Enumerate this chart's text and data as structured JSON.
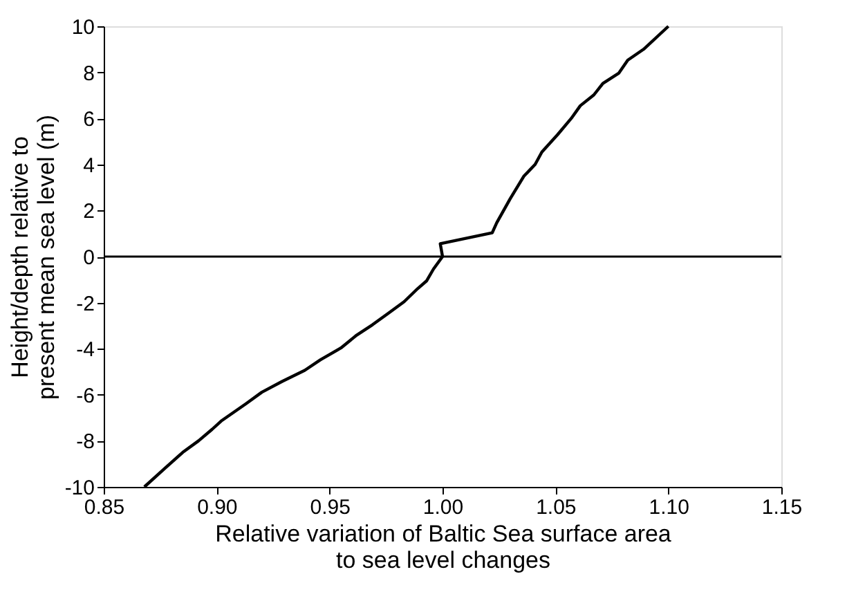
{
  "chart_data": {
    "type": "line",
    "xlabel": "Relative variation of Baltic Sea surface area\nto sea level changes",
    "ylabel": "Height/depth relative to\npresent mean sea level (m)",
    "series": [
      {
        "color": "#000000",
        "x": [
          0.868,
          0.877,
          0.885,
          0.892,
          0.898,
          0.902,
          0.913,
          0.92,
          0.929,
          0.939,
          0.946,
          0.955,
          0.962,
          0.969,
          0.976,
          0.983,
          0.989,
          0.993,
          0.996,
          1.0,
          0.999,
          1.022,
          1.024,
          1.03,
          1.036,
          1.041,
          1.044,
          1.051,
          1.057,
          1.061,
          1.067,
          1.071,
          1.078,
          1.082,
          1.089,
          1.1
        ],
        "values": [
          -10,
          -9.2,
          -8.5,
          -8.0,
          -7.5,
          -7.14,
          -6.39,
          -5.89,
          -5.42,
          -4.94,
          -4.48,
          -3.97,
          -3.41,
          -2.96,
          -2.46,
          -1.96,
          -1.39,
          -1.05,
          -0.54,
          0,
          0.56,
          1.03,
          1.47,
          2.52,
          3.49,
          4.0,
          4.54,
          5.3,
          6.0,
          6.55,
          7.02,
          7.52,
          7.96,
          8.53,
          9.0,
          10
        ]
      }
    ],
    "xlim": [
      0.85,
      1.15
    ],
    "xticks": [
      {
        "value": 0.85,
        "label": "0.85"
      },
      {
        "value": 0.9,
        "label": "0.90"
      },
      {
        "value": 0.95,
        "label": "0.95"
      },
      {
        "value": 1.0,
        "label": "1.00"
      },
      {
        "value": 1.05,
        "label": "1.05"
      },
      {
        "value": 1.1,
        "label": "1.10"
      },
      {
        "value": 1.15,
        "label": "1.15"
      }
    ],
    "ylim": [
      -10,
      10
    ],
    "yticks": [
      -10,
      -8,
      -6,
      -4,
      -2,
      0,
      2,
      4,
      6,
      8,
      10
    ],
    "ref_lines": [
      {
        "axis": "y",
        "value": 0,
        "color": "#000000"
      }
    ],
    "grid": false,
    "marker": "none",
    "line_style": "solid"
  }
}
